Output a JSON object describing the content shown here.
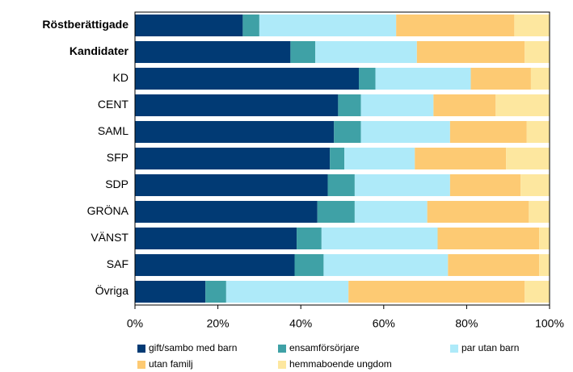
{
  "chart_data": {
    "type": "stacked_barh",
    "categories": [
      "Röstberättigade",
      "Kandidater",
      "KD",
      "CENT",
      "SAML",
      "SFP",
      "SDP",
      "GRÖNA",
      "VÄNST",
      "SAF",
      "Övriga"
    ],
    "series": [
      {
        "name": "gift/sambo med barn",
        "color": "#013a74",
        "values": [
          26,
          37.5,
          54,
          49,
          48,
          47,
          46.5,
          44,
          39,
          38.5,
          17
        ]
      },
      {
        "name": "ensamförsörjare",
        "color": "#3fa1a6",
        "values": [
          4,
          6,
          4,
          5.5,
          6.5,
          3.5,
          6.5,
          9,
          6,
          7,
          5
        ]
      },
      {
        "name": "par utan barn",
        "color": "#aeeaf9",
        "values": [
          33,
          24.5,
          23,
          17.5,
          21.5,
          17,
          23,
          17.5,
          28,
          30,
          29.5
        ]
      },
      {
        "name": "utan familj",
        "color": "#fdca73",
        "values": [
          28.5,
          26,
          14.5,
          15,
          18.5,
          22,
          17,
          24.5,
          24.5,
          22,
          42.5
        ]
      },
      {
        "name": "hemmaboende ungdom",
        "color": "#fde79f",
        "values": [
          8.5,
          6,
          4.5,
          13,
          5.5,
          10.5,
          7,
          5,
          2.5,
          2.5,
          6
        ]
      }
    ],
    "xlim": [
      0,
      100
    ],
    "xticks": [
      {
        "value": 0,
        "label": "0%"
      },
      {
        "value": 20,
        "label": "20%"
      },
      {
        "value": 40,
        "label": "40%"
      },
      {
        "value": 60,
        "label": "60%"
      },
      {
        "value": 80,
        "label": "80%"
      },
      {
        "value": 100,
        "label": "100%"
      }
    ],
    "legend": "bottom"
  }
}
